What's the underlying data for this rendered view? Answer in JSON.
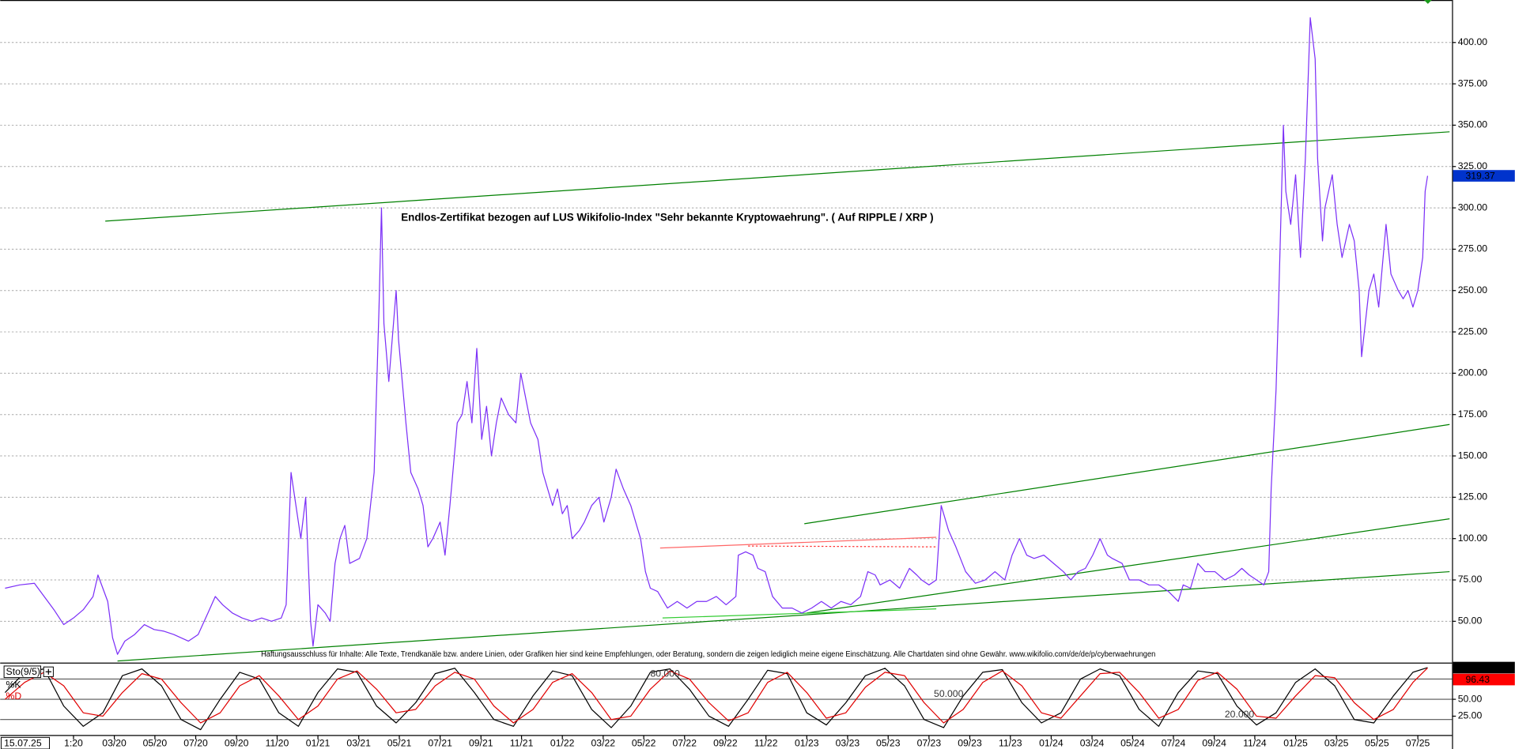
{
  "chart_data": [
    {
      "type": "line",
      "title": "Endlos-Zertifikat bezogen auf LUS Wikifolio-Index \"Sehr bekannte Kryptowaehrung\". ( Auf RIPPLE / XRP )",
      "disclaimer": "Haftungsausschluss für Inhalte: Alle Texte, Trendkanäle bzw. andere Linien, oder Grafiken hier sind keine Empfehlungen, oder Beratung, sondern die zeigen lediglich meine eigene Einschätzung. Alle Chartdaten sind ohne Gewähr. www.wikifolio.com/de/de/p/cyberwaehrungen",
      "cursor_date": "15.07.25",
      "x": [
        2019.72,
        2019.78,
        2019.84,
        2019.88,
        2019.92,
        2019.96,
        2020.0,
        2020.04,
        2020.08,
        2020.1,
        2020.12,
        2020.14,
        2020.16,
        2020.18,
        2020.21,
        2020.25,
        2020.29,
        2020.33,
        2020.37,
        2020.41,
        2020.47,
        2020.51,
        2020.55,
        2020.58,
        2020.61,
        2020.65,
        2020.69,
        2020.73,
        2020.77,
        2020.81,
        2020.85,
        2020.87,
        2020.89,
        2020.91,
        2020.93,
        2020.95,
        2020.97,
        2020.98,
        2021.0,
        2021.03,
        2021.05,
        2021.07,
        2021.09,
        2021.11,
        2021.13,
        2021.17,
        2021.2,
        2021.23,
        2021.25,
        2021.26,
        2021.27,
        2021.29,
        2021.32,
        2021.33,
        2021.36,
        2021.38,
        2021.41,
        2021.43,
        2021.45,
        2021.47,
        2021.5,
        2021.52,
        2021.54,
        2021.57,
        2021.59,
        2021.61,
        2021.63,
        2021.65,
        2021.67,
        2021.69,
        2021.71,
        2021.73,
        2021.75,
        2021.78,
        2021.81,
        2021.83,
        2021.85,
        2021.87,
        2021.9,
        2021.92,
        2021.94,
        2021.96,
        2021.98,
        2022.0,
        2022.02,
        2022.04,
        2022.07,
        2022.09,
        2022.12,
        2022.15,
        2022.17,
        2022.2,
        2022.22,
        2022.25,
        2022.28,
        2022.3,
        2022.32,
        2022.34,
        2022.36,
        2022.39,
        2022.43,
        2022.47,
        2022.51,
        2022.55,
        2022.59,
        2022.63,
        2022.67,
        2022.71,
        2022.72,
        2022.75,
        2022.78,
        2022.8,
        2022.83,
        2022.86,
        2022.9,
        2022.94,
        2022.98,
        2023.02,
        2023.06,
        2023.1,
        2023.14,
        2023.18,
        2023.22,
        2023.25,
        2023.28,
        2023.3,
        2023.34,
        2023.38,
        2023.42,
        2023.45,
        2023.47,
        2023.5,
        2023.53,
        2023.55,
        2023.58,
        2023.61,
        2023.65,
        2023.69,
        2023.73,
        2023.77,
        2023.81,
        2023.84,
        2023.87,
        2023.9,
        2023.93,
        2023.97,
        2024.01,
        2024.05,
        2024.08,
        2024.11,
        2024.14,
        2024.17,
        2024.2,
        2024.23,
        2024.25,
        2024.29,
        2024.32,
        2024.36,
        2024.4,
        2024.44,
        2024.48,
        2024.52,
        2024.54,
        2024.57,
        2024.6,
        2024.63,
        2024.67,
        2024.71,
        2024.75,
        2024.78,
        2024.81,
        2024.84,
        2024.87,
        2024.89,
        2024.9,
        2024.92,
        2024.93,
        2024.95,
        2024.96,
        2024.98,
        2025.0,
        2025.02,
        2025.04,
        2025.06,
        2025.08,
        2025.09,
        2025.11,
        2025.12,
        2025.15,
        2025.17,
        2025.19,
        2025.22,
        2025.24,
        2025.26,
        2025.27,
        2025.3,
        2025.32,
        2025.34,
        2025.37,
        2025.39,
        2025.42,
        2025.44,
        2025.46,
        2025.48,
        2025.5,
        2025.52,
        2025.53,
        2025.54
      ],
      "series": [
        {
          "color": "#7b2ff7",
          "values": [
            70,
            72,
            73,
            65,
            57,
            48,
            52,
            57,
            65,
            78,
            70,
            62,
            40,
            30,
            38,
            42,
            48,
            45,
            44,
            42,
            38,
            42,
            55,
            65,
            60,
            55,
            52,
            50,
            52,
            50,
            52,
            60,
            140,
            120,
            100,
            125,
            50,
            35,
            60,
            55,
            50,
            85,
            100,
            108,
            85,
            88,
            100,
            140,
            240,
            300,
            230,
            195,
            250,
            220,
            170,
            140,
            130,
            120,
            95,
            100,
            110,
            90,
            120,
            170,
            175,
            195,
            170,
            215,
            160,
            180,
            150,
            170,
            185,
            175,
            170,
            200,
            185,
            170,
            160,
            140,
            130,
            120,
            130,
            115,
            120,
            100,
            105,
            110,
            120,
            125,
            110,
            125,
            142,
            130,
            120,
            110,
            100,
            80,
            70,
            68,
            58,
            62,
            58,
            62,
            62,
            65,
            60,
            65,
            90,
            92,
            90,
            82,
            80,
            65,
            58,
            58,
            55,
            58,
            62,
            58,
            62,
            60,
            65,
            80,
            78,
            72,
            75,
            70,
            82,
            78,
            75,
            72,
            75,
            120,
            105,
            95,
            80,
            73,
            75,
            80,
            75,
            90,
            100,
            90,
            88,
            90,
            85,
            80,
            75,
            80,
            82,
            90,
            100,
            90,
            88,
            85,
            75,
            75,
            72,
            72,
            68,
            62,
            72,
            70,
            85,
            80,
            80,
            75,
            78,
            82,
            78,
            75,
            72,
            80,
            130,
            190,
            240,
            350,
            310,
            290,
            320,
            270,
            330,
            415,
            390,
            330,
            280,
            300,
            320,
            290,
            270,
            290,
            280,
            250,
            210,
            250,
            260,
            240,
            290,
            260,
            250,
            245,
            250,
            240,
            250,
            270,
            310,
            319.37
          ]
        }
      ],
      "last_color": "#0033cc",
      "xlim": [
        2019.7,
        2025.64
      ],
      "ylim": [
        25.3,
        425.7
      ],
      "xticks": [
        {
          "value": 2020.0,
          "label": "1:20"
        },
        {
          "value": 2020.167,
          "label": "03/20"
        },
        {
          "value": 2020.333,
          "label": "05/20"
        },
        {
          "value": 2020.5,
          "label": "07/20"
        },
        {
          "value": 2020.667,
          "label": "09/20"
        },
        {
          "value": 2020.833,
          "label": "11/20"
        },
        {
          "value": 2021.0,
          "label": "01/21"
        },
        {
          "value": 2021.167,
          "label": "03/21"
        },
        {
          "value": 2021.333,
          "label": "05/21"
        },
        {
          "value": 2021.5,
          "label": "07/21"
        },
        {
          "value": 2021.667,
          "label": "09/21"
        },
        {
          "value": 2021.833,
          "label": "11/21"
        },
        {
          "value": 2022.0,
          "label": "01/22"
        },
        {
          "value": 2022.167,
          "label": "03/22"
        },
        {
          "value": 2022.333,
          "label": "05/22"
        },
        {
          "value": 2022.5,
          "label": "07/22"
        },
        {
          "value": 2022.667,
          "label": "09/22"
        },
        {
          "value": 2022.833,
          "label": "11/22"
        },
        {
          "value": 2023.0,
          "label": "01/23"
        },
        {
          "value": 2023.167,
          "label": "03/23"
        },
        {
          "value": 2023.333,
          "label": "05/23"
        },
        {
          "value": 2023.5,
          "label": "07/23"
        },
        {
          "value": 2023.667,
          "label": "09/23"
        },
        {
          "value": 2023.833,
          "label": "11/23"
        },
        {
          "value": 2024.0,
          "label": "01/24"
        },
        {
          "value": 2024.167,
          "label": "03/24"
        },
        {
          "value": 2024.333,
          "label": "05/24"
        },
        {
          "value": 2024.5,
          "label": "07/24"
        },
        {
          "value": 2024.667,
          "label": "09/24"
        },
        {
          "value": 2024.833,
          "label": "11/24"
        },
        {
          "value": 2025.0,
          "label": "01/25"
        },
        {
          "value": 2025.167,
          "label": "03/25"
        },
        {
          "value": 2025.333,
          "label": "05/25"
        },
        {
          "value": 2025.5,
          "label": "07/25"
        }
      ],
      "yticks": [
        {
          "value": 50,
          "label": "50.00"
        },
        {
          "value": 75,
          "label": "75.00"
        },
        {
          "value": 100,
          "label": "100.00"
        },
        {
          "value": 125,
          "label": "125.00"
        },
        {
          "value": 150,
          "label": "150.00"
        },
        {
          "value": 175,
          "label": "175.00"
        },
        {
          "value": 200,
          "label": "200.00"
        },
        {
          "value": 225,
          "label": "225.00"
        },
        {
          "value": 250,
          "label": "250.00"
        },
        {
          "value": 275,
          "label": "275.00"
        },
        {
          "value": 300,
          "label": "300.00"
        },
        {
          "value": 325,
          "label": "325.00"
        },
        {
          "value": 350,
          "label": "350.00"
        },
        {
          "value": 375,
          "label": "375.00"
        },
        {
          "value": 400,
          "label": "400.00"
        }
      ],
      "grid": true,
      "trendlines": [
        {
          "x": [
            2020.13,
            2025.63
          ],
          "y": [
            292,
            346
          ],
          "color": "#008000"
        },
        {
          "x": [
            2020.18,
            2025.63
          ],
          "y": [
            26,
            80
          ],
          "color": "#008000"
        },
        {
          "x": [
            2022.99,
            2025.63
          ],
          "y": [
            109,
            169
          ],
          "color": "#008000"
        },
        {
          "x": [
            2023.0,
            2025.63
          ],
          "y": [
            55,
            112
          ],
          "color": "#008000"
        },
        {
          "x": [
            2022.41,
            2023.53
          ],
          "y": [
            52,
            57.5
          ],
          "color": "#33cc33"
        },
        {
          "x": [
            2022.4,
            2023.53
          ],
          "y": [
            94.3,
            100.8
          ],
          "color": "#ff6666"
        },
        {
          "x": [
            2022.76,
            2023.53
          ],
          "y": [
            95.5,
            95
          ],
          "color": "#ff3333",
          "dashed": true
        }
      ]
    },
    {
      "type": "line",
      "title": "Sto(9/5)",
      "x": [
        2019.72,
        2019.8,
        2019.88,
        2019.96,
        2020.04,
        2020.12,
        2020.2,
        2020.28,
        2020.36,
        2020.44,
        2020.52,
        2020.6,
        2020.68,
        2020.76,
        2020.84,
        2020.92,
        2021.0,
        2021.08,
        2021.16,
        2021.24,
        2021.32,
        2021.4,
        2021.48,
        2021.56,
        2021.64,
        2021.72,
        2021.8,
        2021.88,
        2021.96,
        2022.04,
        2022.12,
        2022.2,
        2022.28,
        2022.36,
        2022.44,
        2022.52,
        2022.6,
        2022.68,
        2022.76,
        2022.84,
        2022.92,
        2023.0,
        2023.08,
        2023.16,
        2023.24,
        2023.32,
        2023.4,
        2023.48,
        2023.56,
        2023.64,
        2023.72,
        2023.8,
        2023.88,
        2023.96,
        2024.04,
        2024.12,
        2024.2,
        2024.28,
        2024.36,
        2024.44,
        2024.52,
        2024.6,
        2024.68,
        2024.76,
        2024.84,
        2024.92,
        2025.0,
        2025.08,
        2025.16,
        2025.24,
        2025.32,
        2025.4,
        2025.48,
        2025.54
      ],
      "series": [
        {
          "name": "%K",
          "color": "#000000",
          "tag_color": "#000000",
          "values": [
            60,
            90,
            95,
            40,
            10,
            30,
            85,
            95,
            70,
            20,
            5,
            50,
            90,
            80,
            30,
            10,
            60,
            95,
            90,
            40,
            15,
            45,
            88,
            96,
            60,
            20,
            10,
            55,
            92,
            85,
            35,
            8,
            40,
            90,
            95,
            65,
            25,
            10,
            50,
            93,
            88,
            30,
            12,
            45,
            85,
            96,
            70,
            20,
            8,
            55,
            90,
            94,
            45,
            15,
            30,
            80,
            95,
            85,
            35,
            10,
            60,
            92,
            88,
            40,
            12,
            30,
            75,
            95,
            70,
            20,
            15,
            55,
            90,
            96.92
          ]
        },
        {
          "name": "%D",
          "color": "#e00000",
          "tag_color": "#ff0000",
          "values": [
            50,
            75,
            90,
            70,
            30,
            25,
            60,
            88,
            80,
            45,
            15,
            30,
            70,
            85,
            55,
            20,
            40,
            80,
            92,
            65,
            30,
            35,
            70,
            90,
            80,
            40,
            15,
            35,
            75,
            88,
            60,
            20,
            25,
            65,
            92,
            80,
            45,
            18,
            30,
            75,
            90,
            60,
            22,
            30,
            68,
            90,
            85,
            45,
            15,
            35,
            75,
            92,
            70,
            30,
            22,
            55,
            88,
            90,
            60,
            22,
            35,
            78,
            90,
            65,
            25,
            22,
            55,
            85,
            82,
            45,
            20,
            35,
            75,
            96.43
          ]
        }
      ],
      "ylim": [
        -3.6,
        103.6
      ],
      "yticks": [
        {
          "value": 25,
          "label": "25.00"
        },
        {
          "value": 50,
          "label": "50.00"
        }
      ],
      "levels": [
        {
          "value": 80,
          "label": "80.000",
          "at": 2022.36
        },
        {
          "value": 50,
          "label": "50.000",
          "at": 2023.52
        },
        {
          "value": 20,
          "label": "20.000",
          "at": 2024.71
        }
      ]
    }
  ]
}
